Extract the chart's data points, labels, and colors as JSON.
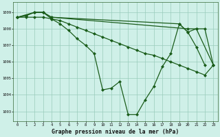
{
  "background_color": "#cff0e8",
  "plot_bg_color": "#cff0e8",
  "line_color": "#1a5c1a",
  "marker": "D",
  "marker_size": 2.0,
  "line_width": 0.9,
  "title": "Graphe pression niveau de la mer (hPa)",
  "xlim": [
    -0.5,
    23.5
  ],
  "ylim": [
    1002.4,
    1009.6
  ],
  "yticks": [
    1003,
    1004,
    1005,
    1006,
    1007,
    1008,
    1009
  ],
  "xticks": [
    0,
    1,
    2,
    3,
    4,
    5,
    6,
    7,
    8,
    9,
    10,
    11,
    12,
    13,
    14,
    15,
    16,
    17,
    18,
    19,
    20,
    21,
    22,
    23
  ],
  "grid_color": "#99ccbb",
  "line1_x": [
    0,
    1,
    2,
    3,
    4,
    5,
    6,
    7,
    8,
    9,
    10,
    11,
    12,
    13,
    14,
    15,
    16,
    17,
    18,
    19,
    20,
    21,
    22
  ],
  "line1_y": [
    1008.7,
    1008.8,
    1009.0,
    1009.0,
    1008.6,
    1008.3,
    1007.9,
    1007.4,
    1007.0,
    1006.5,
    1004.3,
    1004.4,
    1004.8,
    1002.8,
    1002.8,
    1003.7,
    1004.5,
    1005.7,
    1006.5,
    1008.3,
    1007.8,
    1006.9,
    1005.8
  ],
  "line2_x": [
    0,
    1,
    2,
    3,
    4,
    5,
    6,
    7,
    8,
    9,
    10,
    11,
    12,
    13,
    14,
    15,
    16,
    17,
    18,
    19,
    20,
    21,
    22,
    23
  ],
  "line2_y": [
    1008.7,
    1008.7,
    1008.7,
    1008.7,
    1008.6,
    1008.5,
    1008.3,
    1008.1,
    1007.9,
    1007.7,
    1007.5,
    1007.3,
    1007.1,
    1006.9,
    1006.7,
    1006.5,
    1006.4,
    1006.2,
    1006.0,
    1005.8,
    1005.6,
    1005.4,
    1005.2,
    1005.8
  ],
  "line3_x": [
    0,
    1,
    2,
    3,
    4,
    19,
    20,
    21,
    22,
    23
  ],
  "line3_y": [
    1008.7,
    1008.8,
    1009.0,
    1009.0,
    1008.7,
    1008.3,
    1007.8,
    1008.0,
    1008.0,
    1005.8
  ],
  "line4_x": [
    0,
    2,
    3,
    4,
    20,
    21,
    23
  ],
  "line4_y": [
    1008.7,
    1009.0,
    1009.0,
    1008.7,
    1008.0,
    1008.0,
    1005.8
  ]
}
